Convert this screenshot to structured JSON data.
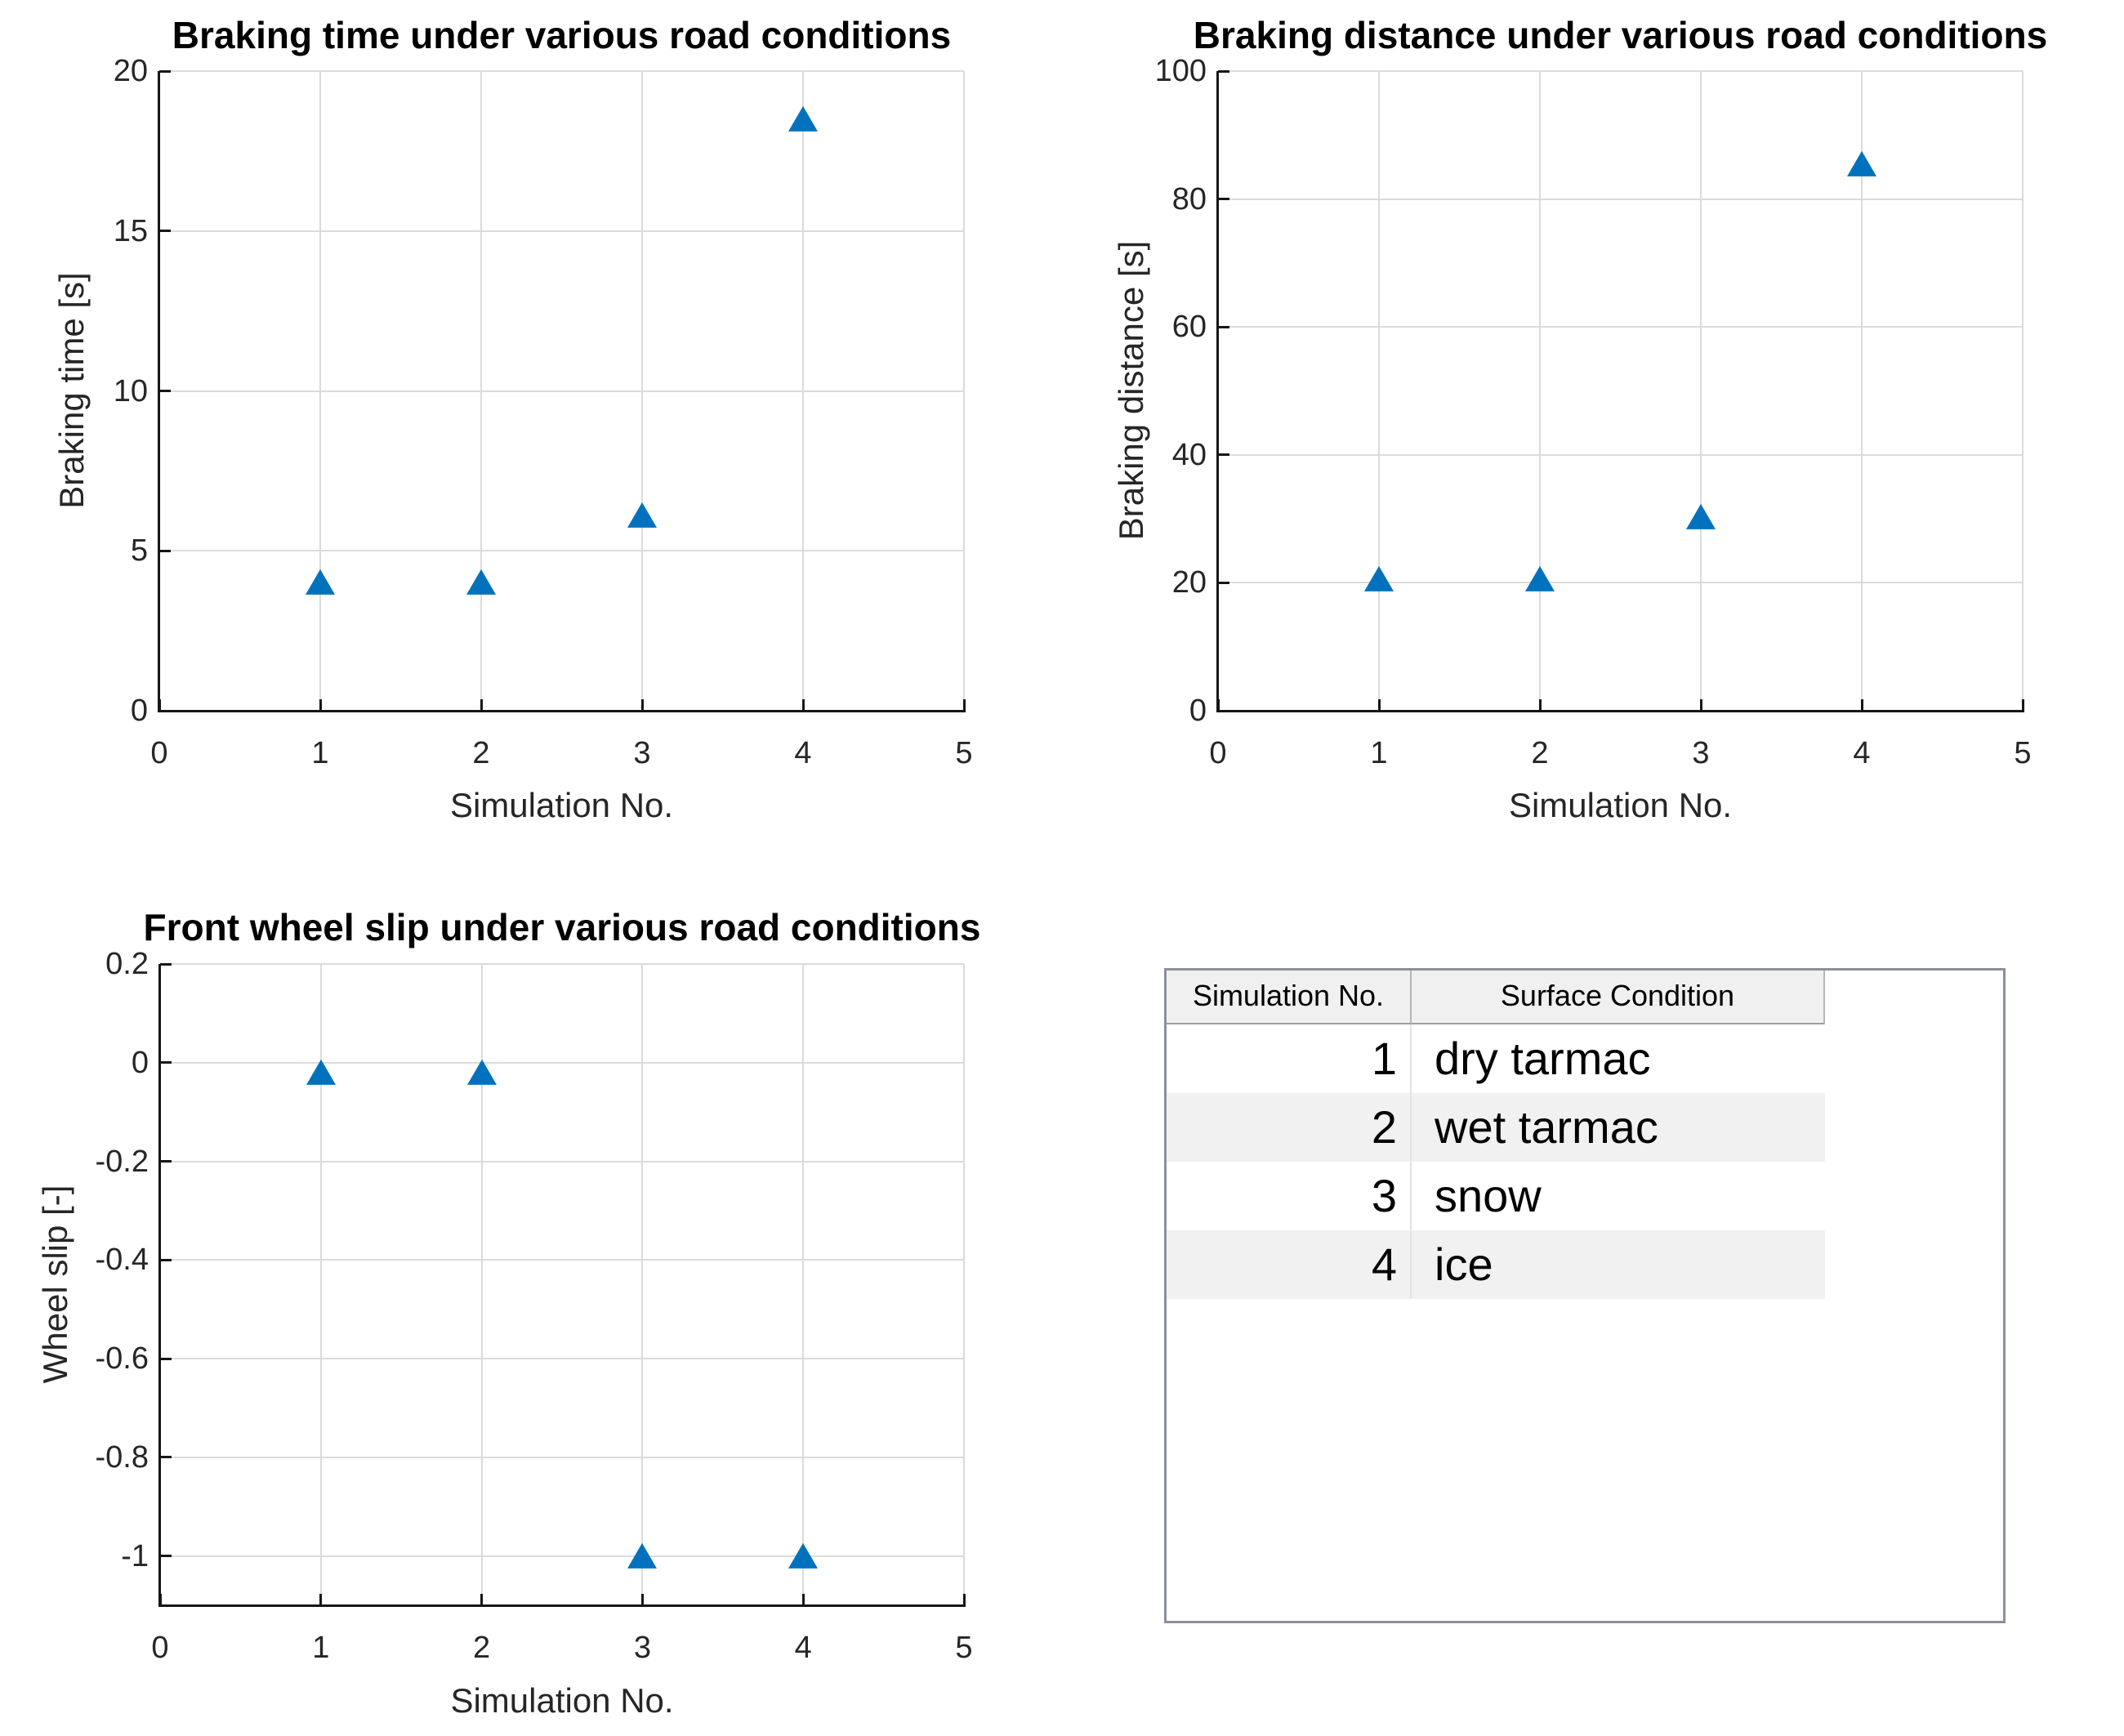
{
  "chart_data": [
    {
      "type": "scatter",
      "title": "Braking time under various road conditions",
      "xlabel": "Simulation No.",
      "ylabel": "Braking time [s]",
      "x": [
        1,
        2,
        3,
        4
      ],
      "y": [
        4.0,
        4.0,
        6.1,
        18.5
      ],
      "xlim": [
        0,
        5
      ],
      "ylim": [
        0,
        20
      ],
      "xticks": [
        0,
        1,
        2,
        3,
        4,
        5
      ],
      "xtick_labels": [
        "0",
        "1",
        "2",
        "3",
        "4",
        "5"
      ],
      "yticks": [
        0,
        5,
        10,
        15,
        20
      ],
      "ytick_labels": [
        "0",
        "5",
        "10",
        "15",
        "20"
      ],
      "marker": "filled-triangle-up",
      "marker_color": "#0072BD",
      "grid": true,
      "legend": "none"
    },
    {
      "type": "scatter",
      "title": "Braking distance under various road conditions",
      "xlabel": "Simulation No.",
      "ylabel": "Braking distance [s]",
      "x": [
        1,
        2,
        3,
        4
      ],
      "y": [
        20.5,
        20.5,
        30.3,
        85.4
      ],
      "xlim": [
        0,
        5
      ],
      "ylim": [
        0,
        100
      ],
      "xticks": [
        0,
        1,
        2,
        3,
        4,
        5
      ],
      "xtick_labels": [
        "0",
        "1",
        "2",
        "3",
        "4",
        "5"
      ],
      "yticks": [
        0,
        20,
        40,
        60,
        80,
        100
      ],
      "ytick_labels": [
        "0",
        "20",
        "40",
        "60",
        "80",
        "100"
      ],
      "marker": "filled-triangle-up",
      "marker_color": "#0072BD",
      "grid": true,
      "legend": "none"
    },
    {
      "type": "scatter",
      "title": "Front wheel slip under various road conditions",
      "xlabel": "Simulation No.",
      "ylabel": "Wheel slip [-]",
      "x": [
        1,
        2,
        3,
        4
      ],
      "y": [
        -0.02,
        -0.02,
        -1.0,
        -1.0
      ],
      "xlim": [
        0,
        5
      ],
      "ylim": [
        -1.1,
        0.2
      ],
      "xticks": [
        0,
        1,
        2,
        3,
        4,
        5
      ],
      "xtick_labels": [
        "0",
        "1",
        "2",
        "3",
        "4",
        "5"
      ],
      "yticks": [
        0.2,
        0,
        -0.2,
        -0.4,
        -0.6,
        -0.8,
        -1
      ],
      "ytick_labels": [
        "0.2",
        "0",
        "-0.2",
        "-0.4",
        "-0.6",
        "-0.8",
        "-1"
      ],
      "marker": "filled-triangle-up",
      "marker_color": "#0072BD",
      "grid": true,
      "legend": "none"
    }
  ],
  "table": {
    "headers": [
      "Simulation No.",
      "Surface Condition"
    ],
    "rows": [
      [
        "1",
        "dry tarmac"
      ],
      [
        "2",
        "wet tarmac"
      ],
      [
        "3",
        "snow"
      ],
      [
        "4",
        "ice"
      ]
    ]
  }
}
